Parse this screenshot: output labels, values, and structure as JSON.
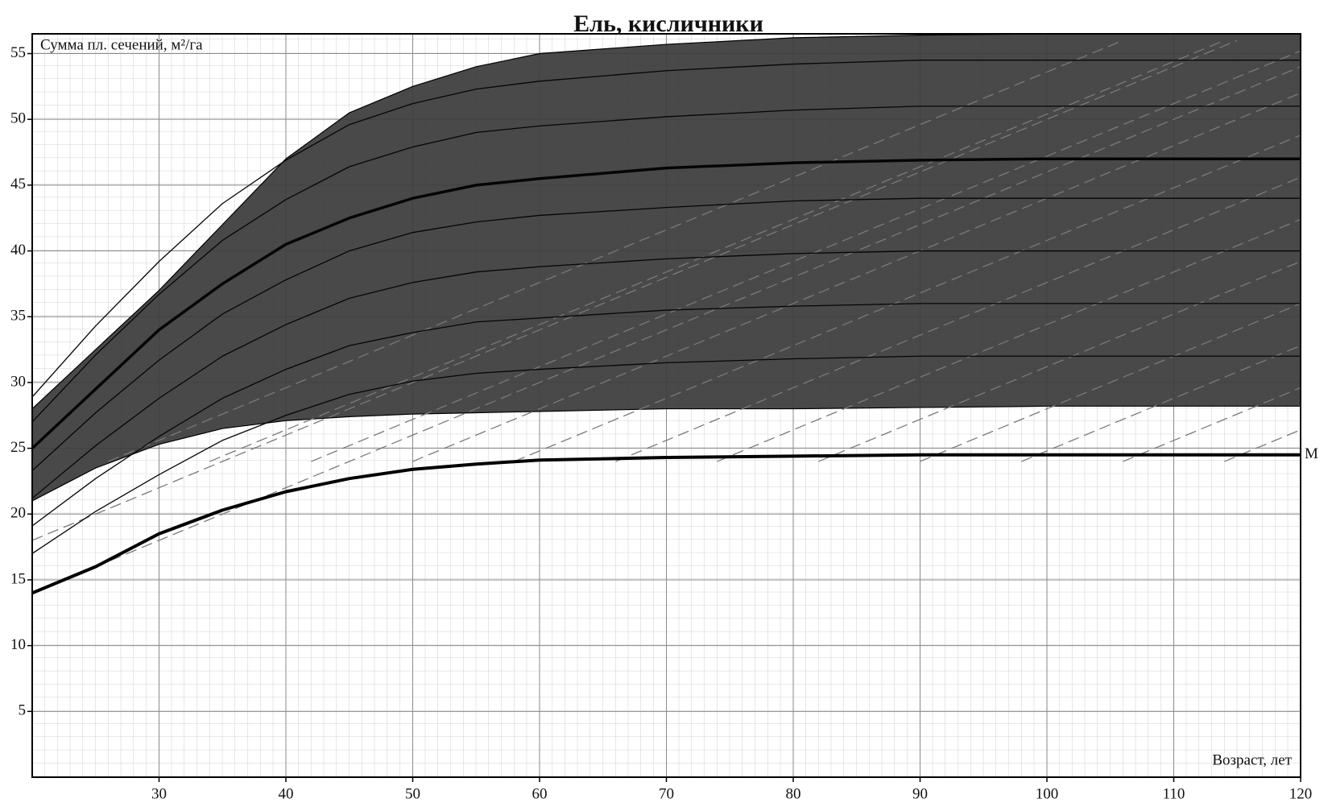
{
  "chart_data": {
    "type": "line",
    "title": "Ель, кисличники",
    "y_label": "Сумма пл. сечений, м²/га",
    "x_label": "Возраст, лет",
    "xlim": [
      20,
      120
    ],
    "ylim": [
      0,
      56.5
    ],
    "xticks": [
      30,
      40,
      50,
      60,
      70,
      80,
      90,
      100,
      110,
      120
    ],
    "yticks": [
      5,
      10,
      15,
      20,
      25,
      30,
      35,
      40,
      45,
      50,
      55
    ],
    "grid": true,
    "x": [
      20,
      25,
      30,
      35,
      40,
      45,
      50,
      55,
      60,
      70,
      80,
      90,
      100,
      110,
      120
    ],
    "band": {
      "color": "#3b3b3b",
      "upper": [
        28,
        32.5,
        37,
        42,
        47,
        50.5,
        52.5,
        54,
        55,
        55.7,
        56.2,
        56.4,
        56.5,
        56.5,
        56.5
      ],
      "lower": [
        21,
        23.5,
        25.3,
        26.5,
        27.1,
        27.4,
        27.6,
        27.7,
        27.8,
        28,
        28,
        28.1,
        28.2,
        28.2,
        28.2
      ]
    },
    "series": [
      {
        "name": "M",
        "color": "#000000",
        "width": 4,
        "values": [
          14,
          16,
          18.5,
          20.3,
          21.7,
          22.7,
          23.4,
          23.8,
          24.1,
          24.3,
          24.4,
          24.5,
          24.5,
          24.5,
          24.5
        ]
      },
      {
        "color": "#000000",
        "width": 3.5,
        "values": [
          25,
          29.5,
          34,
          37.5,
          40.5,
          42.5,
          44,
          45,
          45.5,
          46.3,
          46.7,
          46.9,
          47,
          47,
          47
        ]
      },
      {
        "color": "#000000",
        "width": 1.3,
        "values": [
          28.9,
          34.3,
          39.2,
          43.6,
          46.9,
          49.6,
          51.2,
          52.3,
          52.9,
          53.7,
          54.2,
          54.5,
          54.5,
          54.5,
          54.5
        ]
      },
      {
        "color": "#000000",
        "width": 1.3,
        "values": [
          27,
          32.1,
          36.7,
          40.8,
          43.9,
          46.4,
          47.9,
          49,
          49.5,
          50.2,
          50.7,
          51,
          51,
          51,
          51
        ]
      },
      {
        "color": "#000000",
        "width": 1.3,
        "values": [
          23.3,
          27.7,
          31.7,
          35.2,
          37.8,
          40,
          41.4,
          42.2,
          42.7,
          43.3,
          43.8,
          44,
          44,
          44,
          44
        ]
      },
      {
        "color": "#000000",
        "width": 1.3,
        "values": [
          21.2,
          25.2,
          28.8,
          32,
          34.4,
          36.4,
          37.6,
          38.4,
          38.8,
          39.4,
          39.8,
          40,
          40,
          40,
          40
        ]
      },
      {
        "color": "#000000",
        "width": 1.3,
        "values": [
          19.1,
          22.7,
          25.9,
          28.8,
          31,
          32.8,
          33.8,
          34.6,
          34.9,
          35.5,
          35.8,
          36,
          36,
          36,
          36
        ]
      },
      {
        "color": "#000000",
        "width": 1.3,
        "values": [
          17,
          20.2,
          23,
          25.6,
          27.5,
          29.1,
          30.1,
          30.7,
          31,
          31.5,
          31.8,
          32,
          32,
          32,
          32
        ]
      }
    ],
    "dash_color": "#7a7a7a",
    "dashed_lines": [
      {
        "x": [
          20,
          120
        ],
        "values": [
          14,
          54
        ]
      },
      {
        "x": [
          20,
          115
        ],
        "values": [
          18,
          56
        ]
      },
      {
        "x": [
          26,
          106
        ],
        "values": [
          24,
          56
        ]
      },
      {
        "x": [
          34,
          114
        ],
        "values": [
          24,
          56
        ]
      },
      {
        "x": [
          42,
          120
        ],
        "values": [
          24,
          55.2
        ]
      },
      {
        "x": [
          50,
          120
        ],
        "values": [
          24,
          52
        ]
      },
      {
        "x": [
          58,
          120
        ],
        "values": [
          24,
          48.8
        ]
      },
      {
        "x": [
          66,
          120
        ],
        "values": [
          24,
          45.6
        ]
      },
      {
        "x": [
          74,
          120
        ],
        "values": [
          24,
          42.4
        ]
      },
      {
        "x": [
          82,
          120
        ],
        "values": [
          24,
          39.2
        ]
      },
      {
        "x": [
          90,
          120
        ],
        "values": [
          24,
          36
        ]
      },
      {
        "x": [
          98,
          120
        ],
        "values": [
          24,
          32.8
        ]
      },
      {
        "x": [
          106,
          120
        ],
        "values": [
          24,
          29.6
        ]
      },
      {
        "x": [
          114,
          120
        ],
        "values": [
          24,
          26.4
        ]
      }
    ]
  }
}
